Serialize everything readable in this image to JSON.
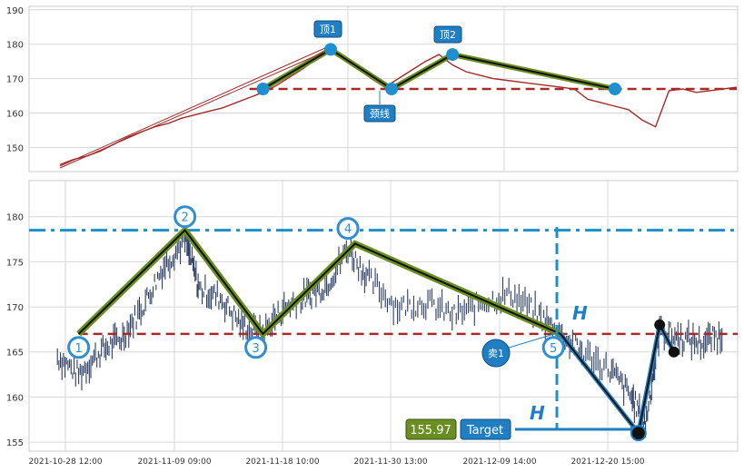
{
  "chart_data": [
    {
      "type": "line",
      "panel": "top",
      "ylim": [
        143,
        191
      ],
      "yticks": [
        150,
        160,
        170,
        180,
        190
      ],
      "grid": true,
      "series": [
        {
          "values": [
            [
              0.0,
              145.0
            ],
            [
              0.02,
              146.5
            ],
            [
              0.04,
              147.5
            ],
            [
              0.06,
              149.0
            ],
            [
              0.08,
              151.0
            ],
            [
              0.1,
              153.0
            ],
            [
              0.12,
              154.5
            ],
            [
              0.14,
              156.0
            ],
            [
              0.16,
              157.0
            ],
            [
              0.18,
              158.5
            ],
            [
              0.2,
              159.5
            ],
            [
              0.22,
              160.5
            ],
            [
              0.24,
              161.5
            ],
            [
              0.26,
              163.0
            ],
            [
              0.28,
              164.5
            ],
            [
              0.3,
              166.0
            ],
            [
              0.32,
              168.0
            ],
            [
              0.34,
              170.5
            ],
            [
              0.36,
              173.0
            ],
            [
              0.38,
              176.0
            ],
            [
              0.4,
              178.5
            ],
            [
              0.42,
              176.0
            ],
            [
              0.44,
              173.0
            ],
            [
              0.46,
              170.0
            ],
            [
              0.48,
              167.5
            ],
            [
              0.5,
              170.0
            ],
            [
              0.52,
              172.5
            ],
            [
              0.54,
              175.0
            ],
            [
              0.56,
              177.0
            ],
            [
              0.58,
              174.0
            ],
            [
              0.6,
              172.0
            ],
            [
              0.62,
              171.0
            ],
            [
              0.64,
              170.0
            ],
            [
              0.66,
              169.5
            ],
            [
              0.68,
              169.0
            ],
            [
              0.7,
              168.5
            ],
            [
              0.72,
              168.0
            ],
            [
              0.74,
              167.5
            ],
            [
              0.76,
              167.0
            ],
            [
              0.78,
              164.0
            ],
            [
              0.8,
              163.0
            ],
            [
              0.82,
              162.0
            ],
            [
              0.84,
              161.0
            ],
            [
              0.86,
              158.0
            ],
            [
              0.88,
              156.0
            ],
            [
              0.9,
              166.5
            ],
            [
              0.92,
              167.0
            ],
            [
              0.94,
              166.0
            ],
            [
              0.96,
              166.5
            ],
            [
              0.98,
              167.0
            ],
            [
              1.0,
              167.5
            ]
          ]
        }
      ],
      "neckline": 167.0,
      "pattern_points": [
        [
          0.3,
          167.0
        ],
        [
          0.4,
          178.5
        ],
        [
          0.49,
          167.0
        ],
        [
          0.58,
          177.0
        ],
        [
          0.82,
          167.0
        ]
      ],
      "annotations": [
        "顶1",
        "颈线",
        "顶2"
      ]
    },
    {
      "type": "line",
      "panel": "bottom",
      "ylim": [
        154,
        184
      ],
      "yticks": [
        155,
        160,
        165,
        170,
        175,
        180
      ],
      "x_tick_labels": [
        "2021-10-28 12:00",
        "2021-11-09 09:00",
        "2021-11-18 10:00",
        "2021-11-30 13:00",
        "2021-12-09 14:00",
        "2021-12-20 15:00"
      ],
      "grid": true,
      "neckline": 167.0,
      "resistance": 178.5,
      "pattern_points": [
        [
          0.07,
          167.0
        ],
        [
          0.22,
          178.5
        ],
        [
          0.33,
          167.0
        ],
        [
          0.46,
          177.0
        ],
        [
          0.75,
          167.0
        ]
      ],
      "pattern_labels": [
        "1",
        "2",
        "3",
        "4",
        "5"
      ],
      "projection": [
        [
          0.75,
          167.0
        ],
        [
          0.86,
          156.0
        ],
        [
          0.89,
          168.0
        ],
        [
          0.91,
          165.0
        ]
      ],
      "target_value": "155.97",
      "target_label": "Target",
      "sell_label": "卖1",
      "height_label": "H"
    }
  ],
  "colors": {
    "green": "#6b8e23",
    "blue": "#1f7fc2",
    "red": "#a52a2a",
    "price": "#333355"
  }
}
